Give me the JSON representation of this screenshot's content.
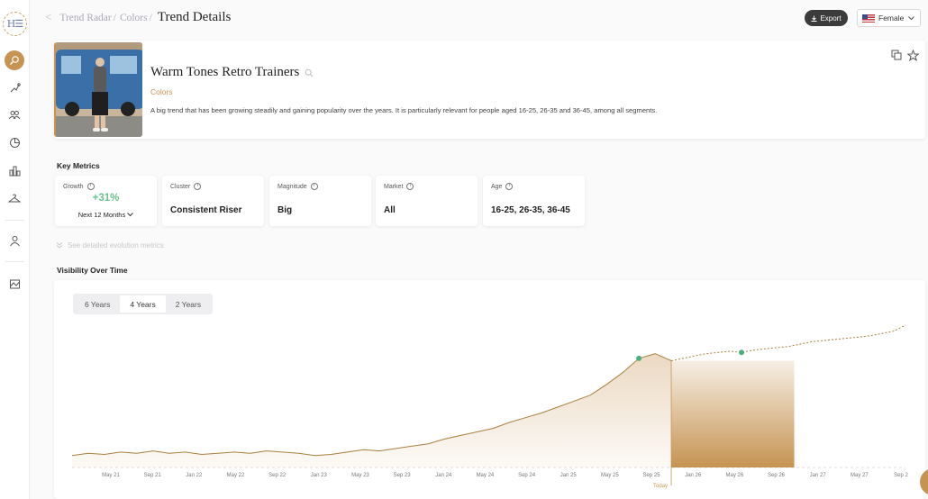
{
  "logo": {
    "text": "H☰"
  },
  "sidebar": {
    "items": [
      {
        "name": "search-icon",
        "active": true
      },
      {
        "name": "trend-icon"
      },
      {
        "name": "audience-icon"
      },
      {
        "name": "pie-chart-icon"
      },
      {
        "name": "bar-chart-icon"
      },
      {
        "name": "hanger-icon"
      },
      {
        "name": "user-icon"
      },
      {
        "name": "report-icon"
      }
    ]
  },
  "breadcrumb": {
    "back": "<",
    "items": [
      "Trend Radar",
      "Colors"
    ],
    "separator": "/",
    "current": "Trend Details"
  },
  "header": {
    "export_label": "Export",
    "gender_value": "Female"
  },
  "trend": {
    "title": "Warm Tones Retro Trainers",
    "category": "Colors",
    "description": "A big trend that has been growing steadily and gaining popularity over the years. It is particularly relevant for people aged 16-25, 26-35 and 36-45, among all segments."
  },
  "metrics": {
    "section_title": "Key Metrics",
    "growth": {
      "label": "Growth",
      "value": "+31%",
      "period": "Next 12 Months"
    },
    "cluster": {
      "label": "Cluster",
      "value": "Consistent Riser"
    },
    "magnitude": {
      "label": "Magnitude",
      "value": "Big"
    },
    "market": {
      "label": "Market",
      "value": "All"
    },
    "age": {
      "label": "Age",
      "value": "16-25, 26-35, 36-45"
    },
    "see_more": "See detailed evolution metrics"
  },
  "visibility": {
    "section_title": "Visibility Over Time",
    "tabs": [
      "6 Years",
      "4 Years",
      "2 Years"
    ],
    "active_tab": "4 Years",
    "today_label": "Today"
  },
  "colors": {
    "accent": "#c69352",
    "growth_positive": "#6cc18c",
    "marker": "#4caf7d"
  },
  "chart_data": {
    "type": "area",
    "x_ticks": [
      "May 21",
      "Sep 21",
      "Jan 22",
      "May 22",
      "Sep 22",
      "Jan 23",
      "May 23",
      "Sep 23",
      "Jan 24",
      "May 24",
      "Sep 24",
      "Jan 25",
      "May 25",
      "Sep 25",
      "Jan 26",
      "May 26",
      "Sep 26",
      "Jan 27",
      "May 27",
      "Sep 2"
    ],
    "today_index": 13,
    "series": [
      {
        "kind": "historical",
        "values": [
          10,
          12,
          11,
          13,
          12,
          14,
          12,
          13,
          11,
          12,
          13,
          12,
          14,
          13,
          12,
          10,
          11,
          13,
          15,
          14,
          16,
          18,
          20,
          24,
          27,
          30,
          33,
          38,
          42,
          46,
          51,
          56,
          61,
          70,
          80,
          92,
          96,
          90
        ]
      },
      {
        "kind": "forecast",
        "values": [
          90,
          92,
          94,
          96,
          97,
          98,
          97,
          99,
          100,
          101,
          102,
          104,
          106,
          107,
          108,
          109,
          110,
          111,
          113,
          115,
          120
        ]
      }
    ],
    "ylim": [
      0,
      120
    ],
    "grid": false,
    "legend": "none"
  }
}
